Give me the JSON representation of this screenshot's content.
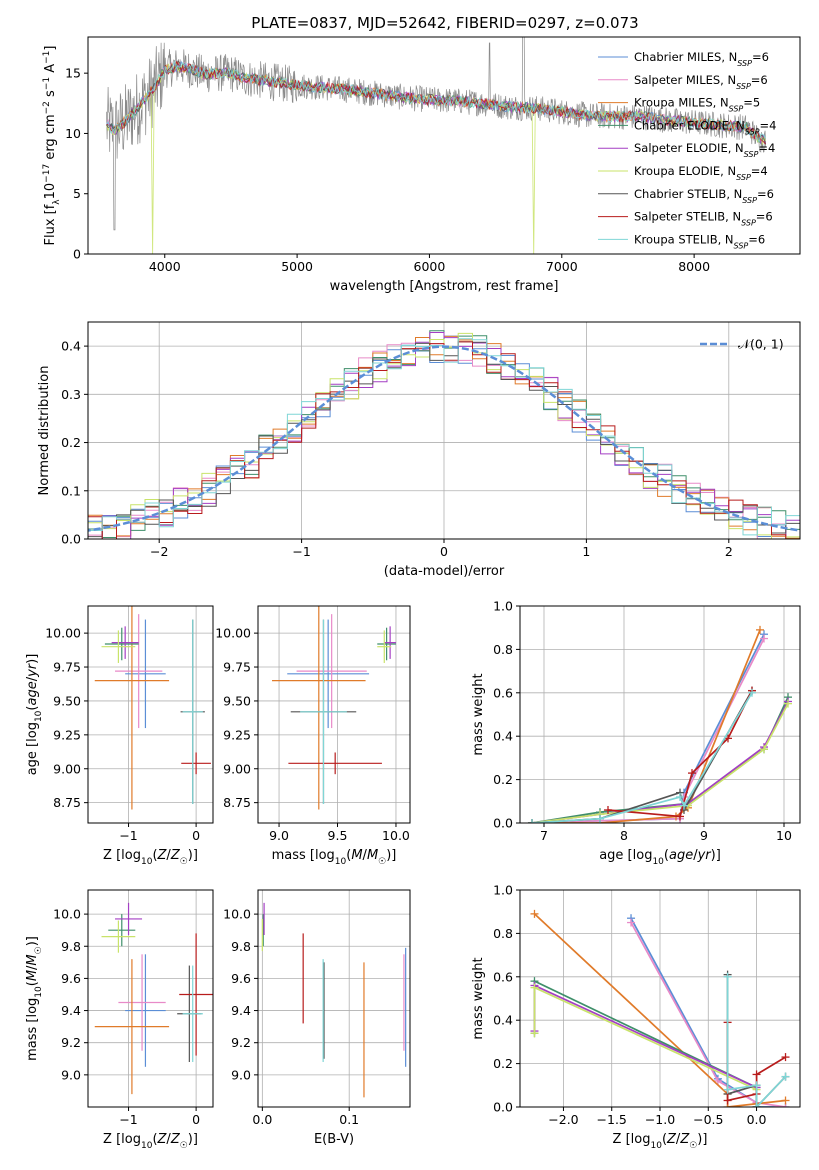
{
  "figure_title": "PLATE=0837, MJD=52642, FIBERID=0297, z=0.073",
  "colors": {
    "Chabrier MILES": "#5b8ed6",
    "Salpeter MILES": "#e88ac8",
    "Kroupa MILES": "#e07b2a",
    "Chabrier ELODIE": "#3f8f6a",
    "Salpeter ELODIE": "#a43fc4",
    "Kroupa ELODIE": "#c9e36a",
    "Chabrier STELIB": "#555555",
    "Salpeter STELIB": "#b81c1c",
    "Kroupa STELIB": "#7fd6d6",
    "data": "#8a8a8a",
    "gaussian": "#5b8ed6"
  },
  "chart_data": [
    {
      "id": "spectrum",
      "type": "line",
      "xlabel": "wavelength [Angstrom, rest frame]",
      "ylabel": "Flux [f",
      "ylabel_parts": {
        "main": "Flux [f",
        "sub": "λ",
        "rest": "10",
        "sup1": "−17",
        "mid": " erg cm",
        "sup2": "−2",
        "mid2": " s",
        "sup3": "−1",
        "end": " A",
        "sup4": "−1",
        "close": "]"
      },
      "xlim": [
        3420,
        8800
      ],
      "ylim": [
        0,
        18
      ],
      "xticks": [
        4000,
        5000,
        6000,
        7000,
        8000
      ],
      "yticks": [
        0,
        5,
        10,
        15
      ],
      "continuum": {
        "x": [
          3560,
          3620,
          3700,
          3800,
          3900,
          3950,
          4000,
          4100,
          4200,
          4300,
          4400,
          4500,
          4600,
          4800,
          5000,
          5200,
          5400,
          5600,
          5800,
          6000,
          6200,
          6400,
          6600,
          6800,
          7000,
          7200,
          7400,
          7600,
          7800,
          8000,
          8200,
          8400,
          8500
        ],
        "y": [
          10.8,
          10.2,
          11.0,
          12.2,
          13.5,
          14.3,
          15.3,
          15.6,
          15.3,
          14.9,
          15.0,
          15.0,
          14.6,
          14.3,
          14.0,
          13.8,
          13.6,
          13.3,
          13.0,
          12.8,
          12.7,
          12.5,
          12.2,
          12.1,
          11.8,
          11.5,
          11.4,
          11.4,
          11.1,
          10.9,
          10.7,
          10.5,
          9.5
        ]
      },
      "series": [
        {
          "name": "Chabrier MILES, N_SSP=6",
          "label": "Chabrier MILES, N",
          "sub": "SSP",
          "n": "=6"
        },
        {
          "name": "Salpeter MILES, N_SSP=6",
          "label": "Salpeter MILES, N",
          "sub": "SSP",
          "n": "=6"
        },
        {
          "name": "Kroupa MILES, N_SSP=5",
          "label": "Kroupa MILES, N",
          "sub": "SSP",
          "n": "=5"
        },
        {
          "name": "Chabrier ELODIE, N_SSP=4",
          "label": "Chabrier ELODIE, N",
          "sub": "SSP",
          "n": "=4"
        },
        {
          "name": "Salpeter ELODIE, N_SSP=4",
          "label": "Salpeter ELODIE, N",
          "sub": "SSP",
          "n": "=4"
        },
        {
          "name": "Kroupa ELODIE, N_SSP=4",
          "label": "Kroupa ELODIE, N",
          "sub": "SSP",
          "n": "=4"
        },
        {
          "name": "Chabrier STELIB, N_SSP=6",
          "label": "Chabrier STELIB, N",
          "sub": "SSP",
          "n": "=6"
        },
        {
          "name": "Salpeter STELIB, N_SSP=6",
          "label": "Salpeter STELIB, N",
          "sub": "SSP",
          "n": "=6"
        },
        {
          "name": "Kroupa STELIB, N_SSP=6",
          "label": "Kroupa STELIB, N",
          "sub": "SSP",
          "n": "=6"
        }
      ],
      "legend_loc": "upper right",
      "grid": false
    },
    {
      "id": "residuals",
      "type": "line",
      "xlabel": "(data-model)/error",
      "ylabel": "Normed distribution",
      "xlim": [
        -2.5,
        2.5
      ],
      "ylim": [
        0,
        0.45
      ],
      "xticks": [
        -2,
        -1,
        0,
        1,
        2
      ],
      "yticks": [
        0.0,
        0.1,
        0.2,
        0.3,
        0.4
      ],
      "bin_width": 0.1,
      "gaussian_label": "𝒩(0, 1)",
      "legend_loc": "upper right",
      "grid": true
    },
    {
      "id": "age_vs_Z",
      "type": "scatter",
      "xlabel": "Z [log₁₀(Z/Z☉)]",
      "ylabel": "age  [log₁₀(age/yr)]",
      "xlim": [
        -1.6,
        0.25
      ],
      "ylim": [
        8.6,
        10.2
      ],
      "xticks": [
        -1,
        0
      ],
      "yticks": [
        8.75,
        9.0,
        9.25,
        9.5,
        9.75,
        10.0
      ],
      "points": [
        {
          "s": 0,
          "x": -0.75,
          "y": 9.7,
          "xerr": 0.3,
          "yerr": 0.4
        },
        {
          "s": 1,
          "x": -0.85,
          "y": 9.72,
          "xerr": 0.35,
          "yerr": 0.42
        },
        {
          "s": 2,
          "x": -0.95,
          "y": 9.65,
          "xerr": 0.55,
          "yerr": 0.95
        },
        {
          "s": 3,
          "x": -1.1,
          "y": 9.92,
          "xerr": 0.25,
          "yerr": 0.12
        },
        {
          "s": 4,
          "x": -1.05,
          "y": 9.93,
          "xerr": 0.2,
          "yerr": 0.12
        },
        {
          "s": 5,
          "x": -1.15,
          "y": 9.9,
          "xerr": 0.25,
          "yerr": 0.12
        },
        {
          "s": 6,
          "x": -0.05,
          "y": 9.42,
          "xerr": 0.18,
          "yerr": 0.68
        },
        {
          "s": 7,
          "x": 0.0,
          "y": 9.04,
          "xerr": 0.22,
          "yerr": 0.08
        },
        {
          "s": 8,
          "x": -0.05,
          "y": 9.42,
          "xerr": 0.15,
          "yerr": 0.68
        }
      ],
      "grid": true
    },
    {
      "id": "age_vs_mass",
      "type": "scatter",
      "xlabel": "mass [log₁₀(M/M☉)]",
      "ylabel": "",
      "xlim": [
        8.82,
        10.12
      ],
      "ylim": [
        8.6,
        10.2
      ],
      "xticks": [
        9.0,
        9.5,
        10.0
      ],
      "yticks": [
        8.75,
        9.0,
        9.25,
        9.5,
        9.75,
        10.0
      ],
      "points": [
        {
          "s": 0,
          "x": 9.42,
          "y": 9.7,
          "xerr": 0.35,
          "yerr": 0.4
        },
        {
          "s": 1,
          "x": 9.45,
          "y": 9.72,
          "xerr": 0.3,
          "yerr": 0.42
        },
        {
          "s": 2,
          "x": 9.34,
          "y": 9.65,
          "xerr": 0.4,
          "yerr": 0.95
        },
        {
          "s": 3,
          "x": 9.92,
          "y": 9.92,
          "xerr": 0.08,
          "yerr": 0.12
        },
        {
          "s": 4,
          "x": 9.95,
          "y": 9.93,
          "xerr": 0.05,
          "yerr": 0.12
        },
        {
          "s": 5,
          "x": 9.9,
          "y": 9.9,
          "xerr": 0.06,
          "yerr": 0.12
        },
        {
          "s": 6,
          "x": 9.38,
          "y": 9.42,
          "xerr": 0.28,
          "yerr": 0.68
        },
        {
          "s": 7,
          "x": 9.48,
          "y": 9.04,
          "xerr": 0.4,
          "yerr": 0.08
        },
        {
          "s": 8,
          "x": 9.38,
          "y": 9.42,
          "xerr": 0.2,
          "yerr": 0.68
        }
      ],
      "grid": true
    },
    {
      "id": "weight_vs_age",
      "type": "line",
      "xlabel": "age  [log₁₀(age/yr)]",
      "ylabel": "mass weight",
      "xlim": [
        6.7,
        10.2
      ],
      "ylim": [
        0,
        1.0
      ],
      "xticks": [
        7,
        8,
        9,
        10
      ],
      "yticks": [
        0.0,
        0.2,
        0.4,
        0.6,
        0.8,
        1.0
      ],
      "series": [
        {
          "s": 0,
          "x": [
            6.85,
            7.7,
            8.7,
            8.75,
            9.75
          ],
          "y": [
            0.0,
            0.01,
            0.02,
            0.14,
            0.87
          ]
        },
        {
          "s": 1,
          "x": [
            6.85,
            7.7,
            8.7,
            8.75,
            9.75
          ],
          "y": [
            0.0,
            0.01,
            0.02,
            0.12,
            0.85
          ]
        },
        {
          "s": 2,
          "x": [
            6.85,
            7.7,
            8.65,
            8.8,
            9.7
          ],
          "y": [
            0.0,
            0.0,
            0.03,
            0.07,
            0.89
          ]
        },
        {
          "s": 3,
          "x": [
            6.85,
            7.7,
            8.8,
            9.75,
            10.05
          ],
          "y": [
            0.0,
            0.05,
            0.09,
            0.34,
            0.58
          ]
        },
        {
          "s": 4,
          "x": [
            6.85,
            7.7,
            8.8,
            9.75,
            10.05
          ],
          "y": [
            0.0,
            0.04,
            0.09,
            0.35,
            0.56
          ]
        },
        {
          "s": 5,
          "x": [
            6.85,
            7.7,
            8.8,
            9.75,
            10.05
          ],
          "y": [
            0.0,
            0.04,
            0.08,
            0.34,
            0.55
          ]
        },
        {
          "s": 6,
          "x": [
            6.85,
            7.7,
            8.7,
            8.75,
            9.6
          ],
          "y": [
            0.0,
            0.02,
            0.14,
            0.06,
            0.61
          ]
        },
        {
          "s": 7,
          "x": [
            7.8,
            8.7,
            8.85,
            9.3,
            9.6
          ],
          "y": [
            0.06,
            0.03,
            0.23,
            0.39,
            0.61
          ]
        },
        {
          "s": 8,
          "x": [
            6.85,
            7.7,
            8.7,
            8.75,
            9.6
          ],
          "y": [
            0.0,
            0.02,
            0.12,
            0.08,
            0.6
          ]
        }
      ],
      "grid": true
    },
    {
      "id": "mass_vs_Z",
      "type": "scatter",
      "xlabel": "Z [log₁₀(Z/Z☉)]",
      "ylabel": "mass [log₁₀(M/M☉)]",
      "xlim": [
        -1.6,
        0.25
      ],
      "ylim": [
        8.8,
        10.15
      ],
      "xticks": [
        -1,
        0
      ],
      "yticks": [
        9.0,
        9.2,
        9.4,
        9.6,
        9.8,
        10.0
      ],
      "points": [
        {
          "s": 0,
          "x": -0.75,
          "y": 9.4,
          "xerr": 0.3,
          "yerr": 0.35
        },
        {
          "s": 1,
          "x": -0.8,
          "y": 9.45,
          "xerr": 0.35,
          "yerr": 0.3
        },
        {
          "s": 2,
          "x": -0.95,
          "y": 9.3,
          "xerr": 0.55,
          "yerr": 0.42
        },
        {
          "s": 3,
          "x": -1.1,
          "y": 9.9,
          "xerr": 0.2,
          "yerr": 0.1
        },
        {
          "s": 4,
          "x": -1.0,
          "y": 9.97,
          "xerr": 0.2,
          "yerr": 0.1
        },
        {
          "s": 5,
          "x": -1.15,
          "y": 9.86,
          "xerr": 0.25,
          "yerr": 0.1
        },
        {
          "s": 6,
          "x": -0.1,
          "y": 9.38,
          "xerr": 0.18,
          "yerr": 0.3
        },
        {
          "s": 7,
          "x": 0.0,
          "y": 9.5,
          "xerr": 0.25,
          "yerr": 0.38
        },
        {
          "s": 8,
          "x": -0.05,
          "y": 9.38,
          "xerr": 0.15,
          "yerr": 0.3
        }
      ],
      "grid": true
    },
    {
      "id": "mass_vs_EBV",
      "type": "scatter",
      "xlabel": "E(B-V)",
      "ylabel": "",
      "xlim": [
        -0.005,
        0.17
      ],
      "ylim": [
        8.8,
        10.15
      ],
      "xticks": [
        0.0,
        0.1
      ],
      "yticks": [
        9.0,
        9.2,
        9.4,
        9.6,
        9.8,
        10.0
      ],
      "points": [
        {
          "s": 0,
          "x": 0.165,
          "y": 9.42,
          "yerr": 0.37
        },
        {
          "s": 1,
          "x": 0.163,
          "y": 9.45,
          "yerr": 0.3
        },
        {
          "s": 2,
          "x": 0.117,
          "y": 9.28,
          "yerr": 0.42
        },
        {
          "s": 3,
          "x": 0.001,
          "y": 9.9,
          "yerr": 0.1
        },
        {
          "s": 4,
          "x": 0.002,
          "y": 9.97,
          "yerr": 0.1
        },
        {
          "s": 5,
          "x": 0.0,
          "y": 9.87,
          "yerr": 0.1
        },
        {
          "s": 6,
          "x": 0.071,
          "y": 9.4,
          "yerr": 0.3
        },
        {
          "s": 7,
          "x": 0.047,
          "y": 9.6,
          "yerr": 0.28
        },
        {
          "s": 8,
          "x": 0.07,
          "y": 9.4,
          "yerr": 0.32
        }
      ],
      "grid": true
    },
    {
      "id": "weight_vs_Z",
      "type": "line",
      "xlabel": "Z [log₁₀(Z/Z☉)]",
      "ylabel": "mass weight",
      "xlim": [
        -2.45,
        0.45
      ],
      "ylim": [
        0,
        1.0
      ],
      "xticks": [
        -2.0,
        -1.5,
        -1.0,
        -0.5,
        0.0
      ],
      "yticks": [
        0.0,
        0.2,
        0.4,
        0.6,
        0.8,
        1.0
      ],
      "series": [
        {
          "s": 0,
          "x": [
            -1.3,
            -0.4,
            0.0,
            0.0,
            0.3
          ],
          "y": [
            0.87,
            0.13,
            0.02,
            0.0,
            0.0
          ]
        },
        {
          "s": 1,
          "x": [
            -1.3,
            -0.4,
            0.0,
            0.3
          ],
          "y": [
            0.85,
            0.12,
            0.02,
            0.0
          ]
        },
        {
          "s": 2,
          "x": [
            -2.3,
            -0.3,
            -0.3,
            0.3
          ],
          "y": [
            0.89,
            0.06,
            0.0,
            0.03
          ]
        },
        {
          "s": 3,
          "x": [
            -2.3,
            -2.3,
            0.0,
            0.0
          ],
          "y": [
            0.34,
            0.58,
            0.09,
            0.0
          ]
        },
        {
          "s": 4,
          "x": [
            -2.3,
            -2.3,
            0.0
          ],
          "y": [
            0.35,
            0.56,
            0.09
          ]
        },
        {
          "s": 5,
          "x": [
            -2.3,
            -2.3,
            0.0
          ],
          "y": [
            0.34,
            0.55,
            0.08
          ]
        },
        {
          "s": 6,
          "x": [
            -0.3,
            -0.3,
            0.0,
            0.0,
            0.3
          ],
          "y": [
            0.61,
            0.06,
            0.1,
            0.0,
            0.14
          ]
        },
        {
          "s": 7,
          "x": [
            -0.3,
            -0.3,
            0.0,
            0.0,
            0.3
          ],
          "y": [
            0.39,
            0.03,
            0.06,
            0.15,
            0.23
          ]
        },
        {
          "s": 8,
          "x": [
            -0.3,
            -0.3,
            0.0,
            0.0,
            0.3
          ],
          "y": [
            0.6,
            0.08,
            0.1,
            0.0,
            0.14
          ]
        }
      ],
      "grid": true
    }
  ]
}
